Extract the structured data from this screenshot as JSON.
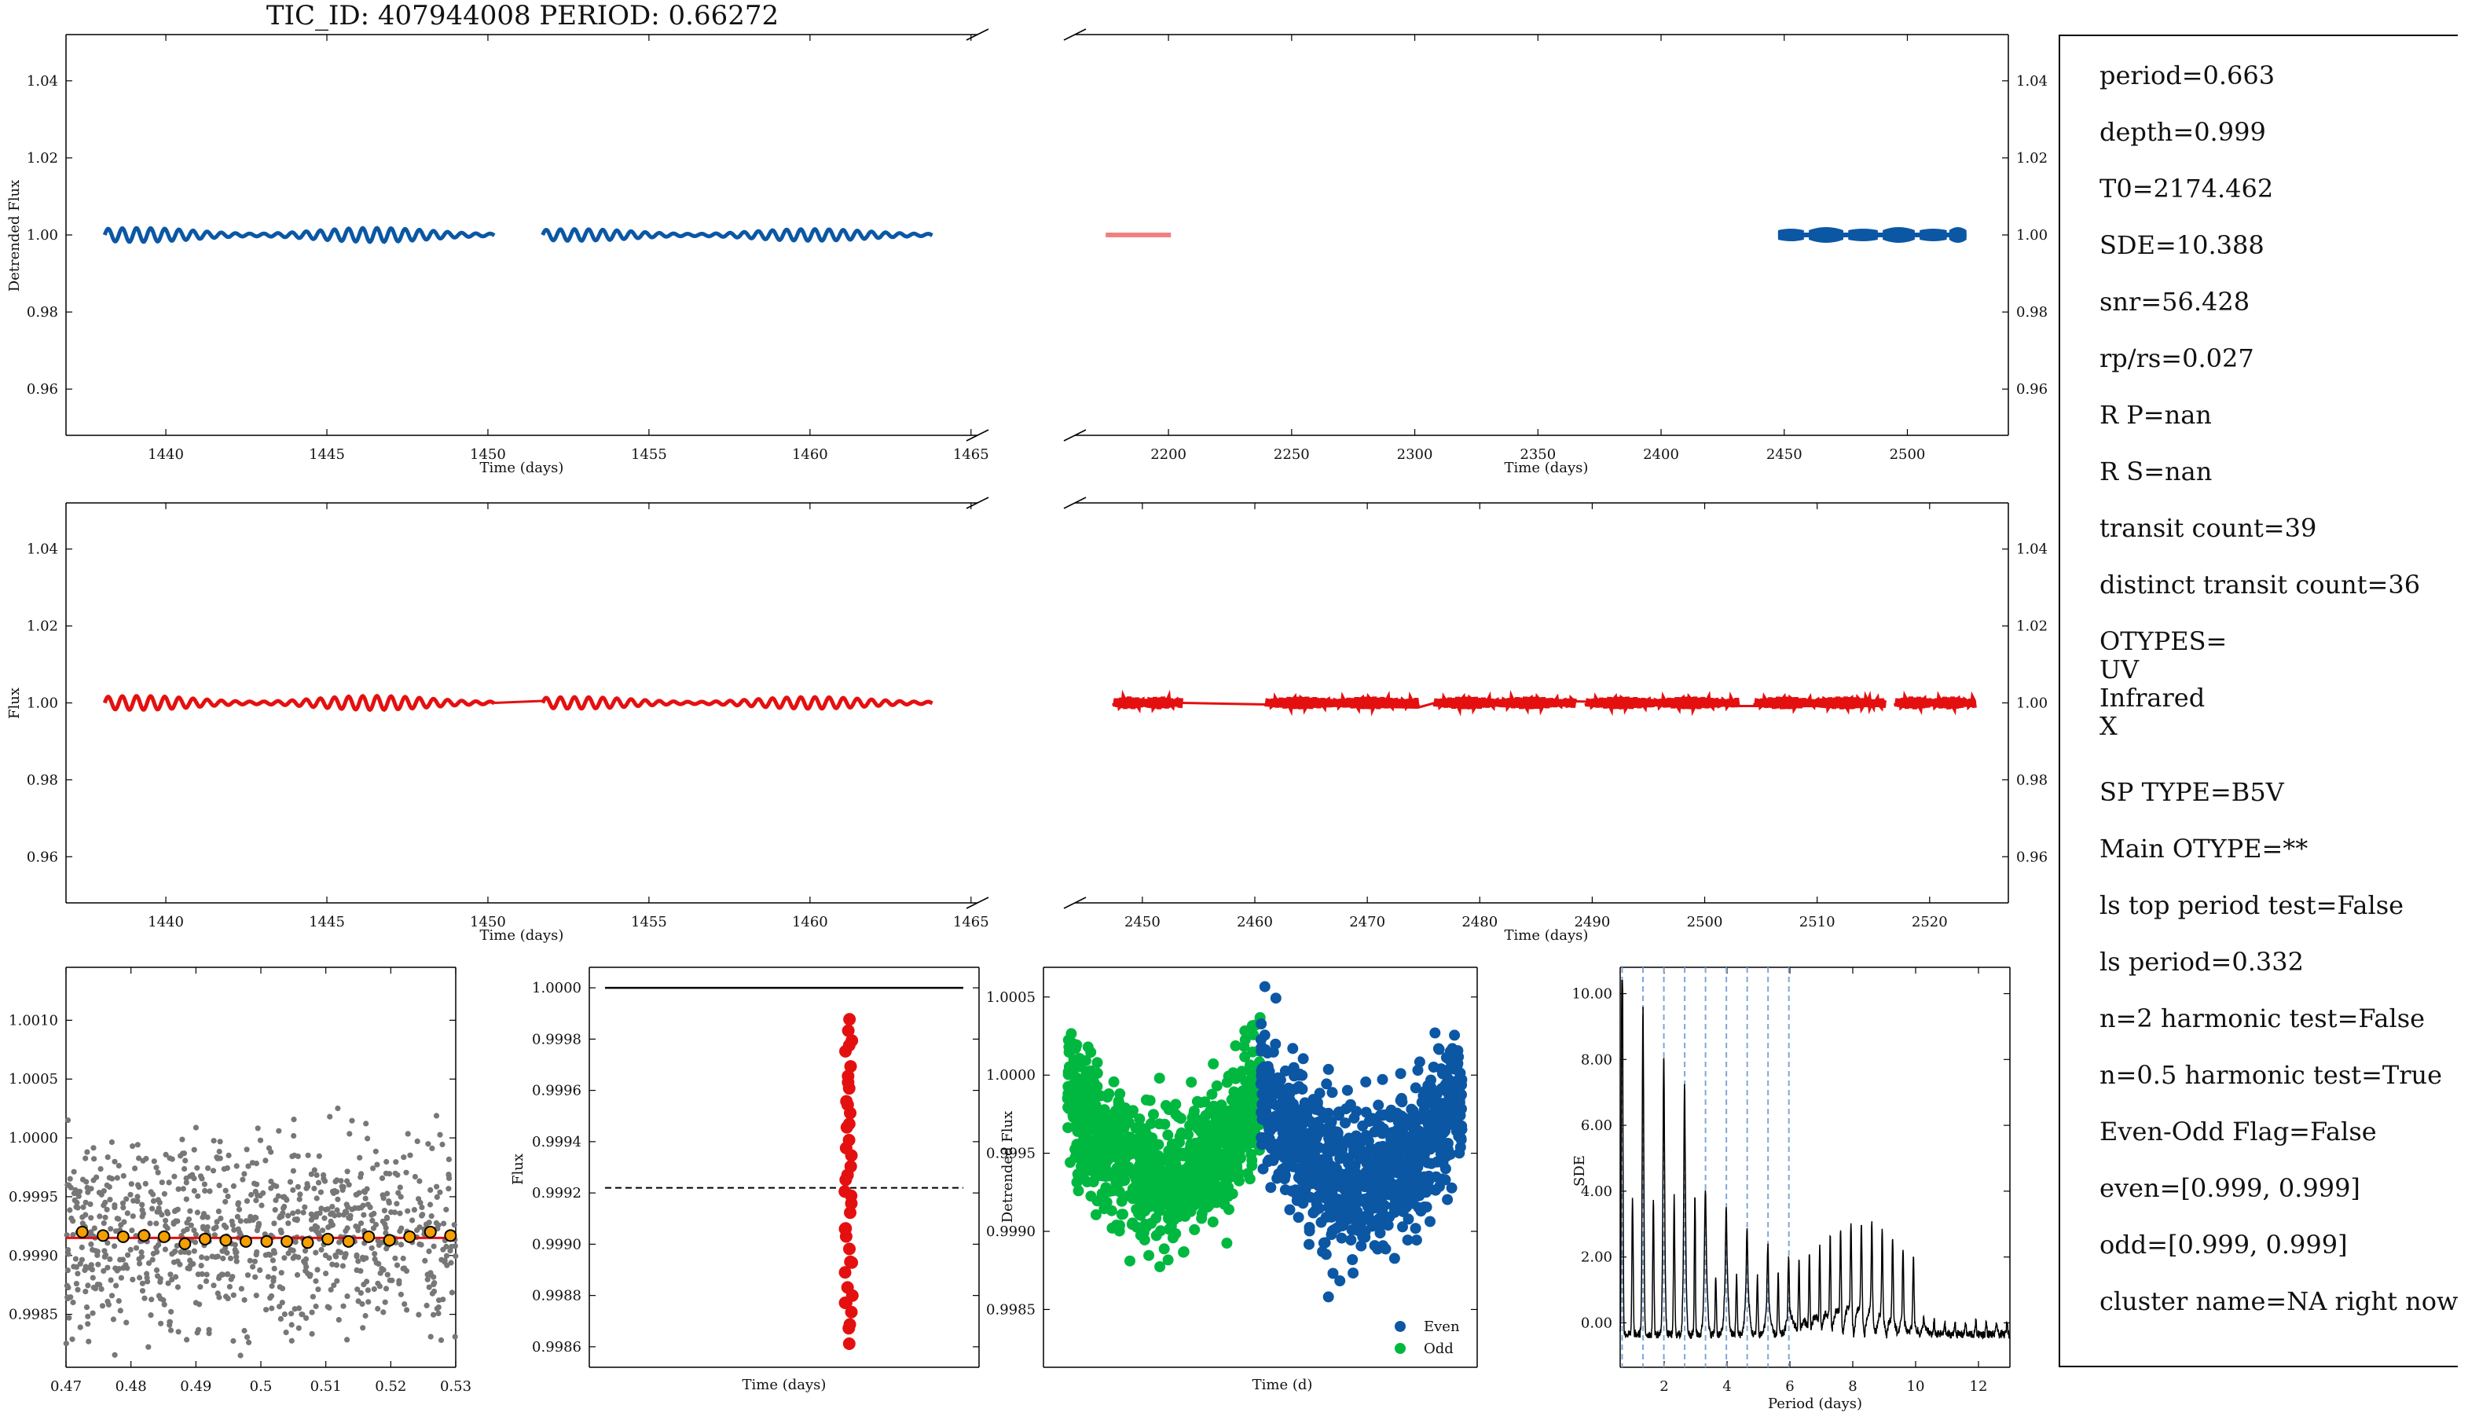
{
  "title": "TIC_ID: 407944008 PERIOD: 0.66272",
  "info_lines": [
    "period=0.663",
    "depth=0.999",
    "T0=2174.462",
    "SDE=10.388",
    "snr=56.428",
    "rp/rs=0.027",
    "R P=nan",
    "R S=nan",
    "transit count=39",
    "distinct transit count=36",
    "OTYPES=\nUV\nInfrared\nX",
    "SP TYPE=B5V",
    "Main OTYPE=**",
    "ls top period test=False",
    "ls period=0.332",
    "n=2 harmonic test=False",
    "n=0.5 harmonic test=True",
    "Even-Odd Flag=False",
    "even=[0.999, 0.999]",
    "odd=[0.999, 0.999]",
    "cluster name=NA right now"
  ],
  "colors": {
    "blue": "#0b57a4",
    "red": "#e41010",
    "green": "#00b840",
    "gray": "#777777",
    "orange": "#f5a000",
    "pink": "#f28080",
    "dashblue": "#7fa8d8"
  },
  "chart_data": [
    {
      "type": "line",
      "panel": "row1-left",
      "ylabel": "Detrended Flux",
      "xlabel": "Time (days)",
      "xticks": [
        1440,
        1445,
        1450,
        1455,
        1460,
        1465
      ],
      "yticks": [
        0.96,
        0.98,
        1.0,
        1.02,
        1.04
      ],
      "xlim": [
        1436.9,
        1465.2
      ],
      "ylim": [
        0.948,
        1.052
      ],
      "series": [
        {
          "x_start": 1438.1,
          "x_end": 1450.2,
          "y_center": 1.0,
          "amplitude": 0.0018
        },
        {
          "x_start": 1451.7,
          "x_end": 1463.8,
          "y_center": 1.0,
          "amplitude": 0.0015
        }
      ]
    },
    {
      "type": "line",
      "panel": "row1-right",
      "xlabel": "Time (days)",
      "xticks": [
        2200,
        2250,
        2300,
        2350,
        2400,
        2450,
        2500
      ],
      "yticks": [
        0.96,
        0.98,
        1.0,
        1.02,
        1.04
      ],
      "xlim": [
        2162,
        2541
      ],
      "ylim": [
        0.948,
        1.052
      ],
      "series": [
        {
          "x_start": 2174.5,
          "x_end": 2201,
          "y_center": 1.0,
          "amplitude": 0.0005
        },
        {
          "x_start": 2447.5,
          "x_end": 2524,
          "y_center": 1.0,
          "amplitude": 0.0022
        }
      ]
    },
    {
      "type": "line",
      "panel": "row2-left",
      "ylabel": "Flux",
      "xlabel": "Time (days)",
      "xticks": [
        1440,
        1445,
        1450,
        1455,
        1460,
        1465
      ],
      "yticks": [
        0.96,
        0.98,
        1.0,
        1.02,
        1.04
      ],
      "xlim": [
        1436.9,
        1465.2
      ],
      "ylim": [
        0.948,
        1.052
      ],
      "series": [
        {
          "x_start": 1438.1,
          "x_end": 1450.2,
          "y_center": 1.0,
          "amplitude": 0.0018
        },
        {
          "x_start": 1451.7,
          "x_end": 1463.8,
          "y_center": 1.0,
          "amplitude": 0.0015
        }
      ]
    },
    {
      "type": "line",
      "panel": "row2-right",
      "xlabel": "Time (days)",
      "xticks": [
        2450,
        2460,
        2470,
        2480,
        2490,
        2500,
        2510,
        2520
      ],
      "yticks": [
        0.96,
        0.98,
        1.0,
        1.02,
        1.04
      ],
      "xlim": [
        2444,
        2527
      ],
      "ylim": [
        0.948,
        1.052
      ],
      "series": [
        {
          "segments": [
            [
              2447.5,
              2453.5
            ],
            [
              2461,
              2474.5
            ],
            [
              2476,
              2488.5
            ],
            [
              2489.5,
              2503
            ],
            [
              2504.5,
              2516
            ],
            [
              2517,
              2524
            ]
          ],
          "y_center": 1.0,
          "amplitude": 0.0022
        }
      ]
    },
    {
      "type": "scatter",
      "panel": "row3-phase",
      "xticks": [
        0.47,
        0.48,
        0.49,
        0.5,
        0.51,
        0.52,
        0.53
      ],
      "yticks": [
        0.9985,
        0.999,
        0.9995,
        1.0,
        1.0005,
        1.001
      ],
      "ytick_labels": [
        "0.9985",
        "0.9990",
        "0.9995",
        "1.0000",
        "1.0005",
        "1.0010"
      ],
      "xlim": [
        0.47,
        0.53
      ],
      "ylim": [
        0.99805,
        1.00145
      ],
      "binned": {
        "x": [
          0.4725,
          0.4757,
          0.4788,
          0.482,
          0.4851,
          0.4883,
          0.4914,
          0.4946,
          0.4977,
          0.5009,
          0.504,
          0.5072,
          0.5103,
          0.5135,
          0.5166,
          0.5198,
          0.5229,
          0.5261,
          0.5292
        ],
        "y": [
          0.9992,
          0.99917,
          0.99916,
          0.99917,
          0.99916,
          0.9991,
          0.99914,
          0.99913,
          0.99912,
          0.99912,
          0.99912,
          0.99911,
          0.99914,
          0.99912,
          0.99916,
          0.99913,
          0.99916,
          0.9992,
          0.99917
        ]
      },
      "model_y": 0.99915,
      "scatter_sigma": 0.00055
    },
    {
      "type": "scatter",
      "panel": "row3-transit-depths",
      "ylabel": "Flux",
      "xlabel": "Time (days)",
      "yticks": [
        0.9986,
        0.9988,
        0.999,
        0.9992,
        0.9994,
        0.9996,
        0.9998,
        1.0
      ],
      "ytick_labels": [
        "0.9986",
        "0.9988",
        "0.9990",
        "0.9992",
        "0.9994",
        "0.9996",
        "0.9998",
        "1.0000"
      ],
      "ylim": [
        0.99852,
        1.00008
      ],
      "baseline": 1.0,
      "mean_depth": 0.99922,
      "depth_range": [
        0.99862,
        0.99987
      ]
    },
    {
      "type": "scatter",
      "panel": "row3-even-odd",
      "ylabel": "Detrended Flux",
      "xlabel": "Time (d)",
      "yticks": [
        0.9985,
        0.999,
        0.9995,
        1.0,
        1.0005
      ],
      "ytick_labels": [
        "0.9985",
        "0.9990",
        "0.9995",
        "1.0000",
        "1.0005"
      ],
      "ylim": [
        0.99813,
        1.00069
      ],
      "series": [
        {
          "name": "Even"
        },
        {
          "name": "Odd"
        }
      ]
    },
    {
      "type": "line",
      "panel": "row3-periodogram",
      "ylabel": "SDE",
      "xlabel": "Period (days)",
      "xticks": [
        2,
        4,
        6,
        8,
        10,
        12
      ],
      "yticks": [
        0,
        2,
        4,
        6,
        8,
        10
      ],
      "xlim": [
        0.6,
        13.0
      ],
      "ylim": [
        -1.35,
        10.8
      ],
      "peak_period": 0.663,
      "peak_sde": 10.388,
      "harmonic_lines": [
        0.663,
        1.326,
        1.989,
        2.652,
        3.315,
        3.978,
        4.641,
        5.304,
        5.967
      ]
    }
  ]
}
